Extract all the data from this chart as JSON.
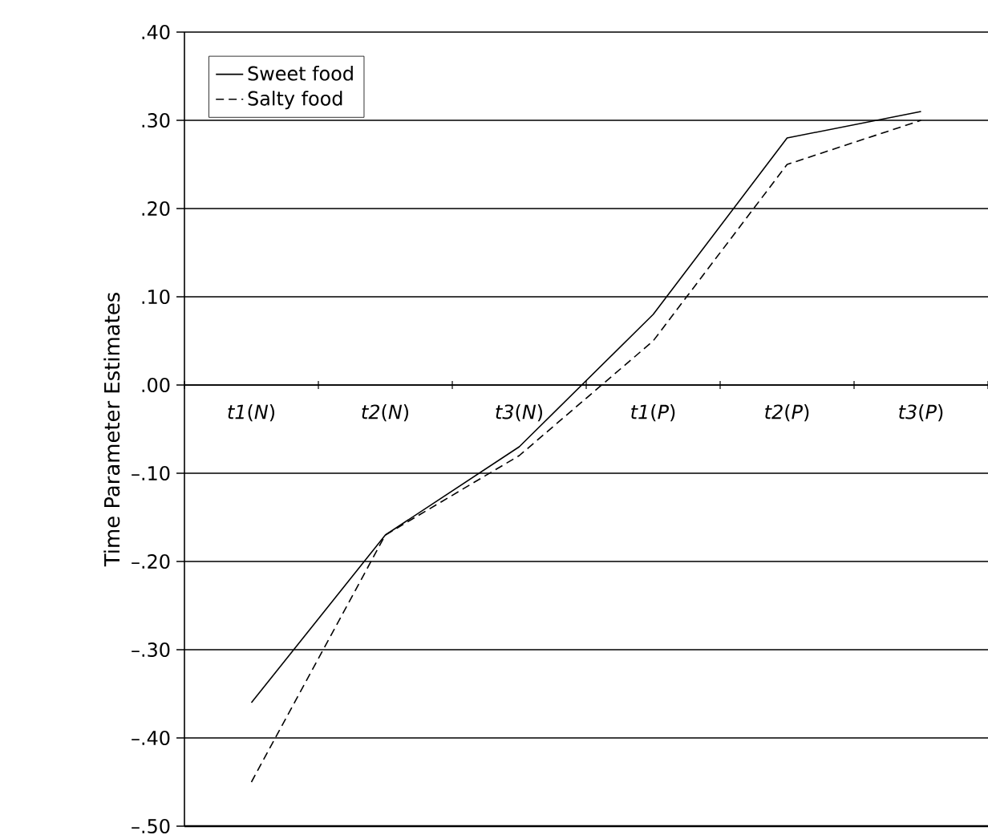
{
  "chart_data": {
    "type": "line",
    "ylabel": "Time Parameter Estimates",
    "categories": [
      "*t1*(*N*)",
      "*t2*(*N*)",
      "*t3*(*N*)",
      "*t1*(*P*)",
      "*t2*(*P*)",
      "*t3*(*P*)"
    ],
    "series": [
      {
        "name": "Sweet food",
        "color": "#000000",
        "line_style": "solid",
        "values": [
          -0.36,
          -0.17,
          -0.07,
          0.08,
          0.28,
          0.31
        ]
      },
      {
        "name": "Salty food",
        "color": "#000000",
        "line_style": "dashed",
        "values": [
          -0.45,
          -0.17,
          -0.08,
          0.05,
          0.25,
          0.3
        ]
      }
    ],
    "ylim": [
      -0.5,
      0.4
    ],
    "yticks": [
      {
        "value": 0.4,
        "label": ".40"
      },
      {
        "value": 0.3,
        "label": ".30"
      },
      {
        "value": 0.2,
        "label": ".20"
      },
      {
        "value": 0.1,
        "label": ".10"
      },
      {
        "value": 0,
        "label": ".00"
      },
      {
        "value": -0.1,
        "label": "–.10"
      },
      {
        "value": -0.2,
        "label": "–.20"
      },
      {
        "value": -0.3,
        "label": "–.30"
      },
      {
        "value": -0.4,
        "label": "–.40"
      },
      {
        "value": -0.5,
        "label": "–.50"
      }
    ],
    "grid": "y",
    "legend": "top left",
    "marker": "none"
  }
}
